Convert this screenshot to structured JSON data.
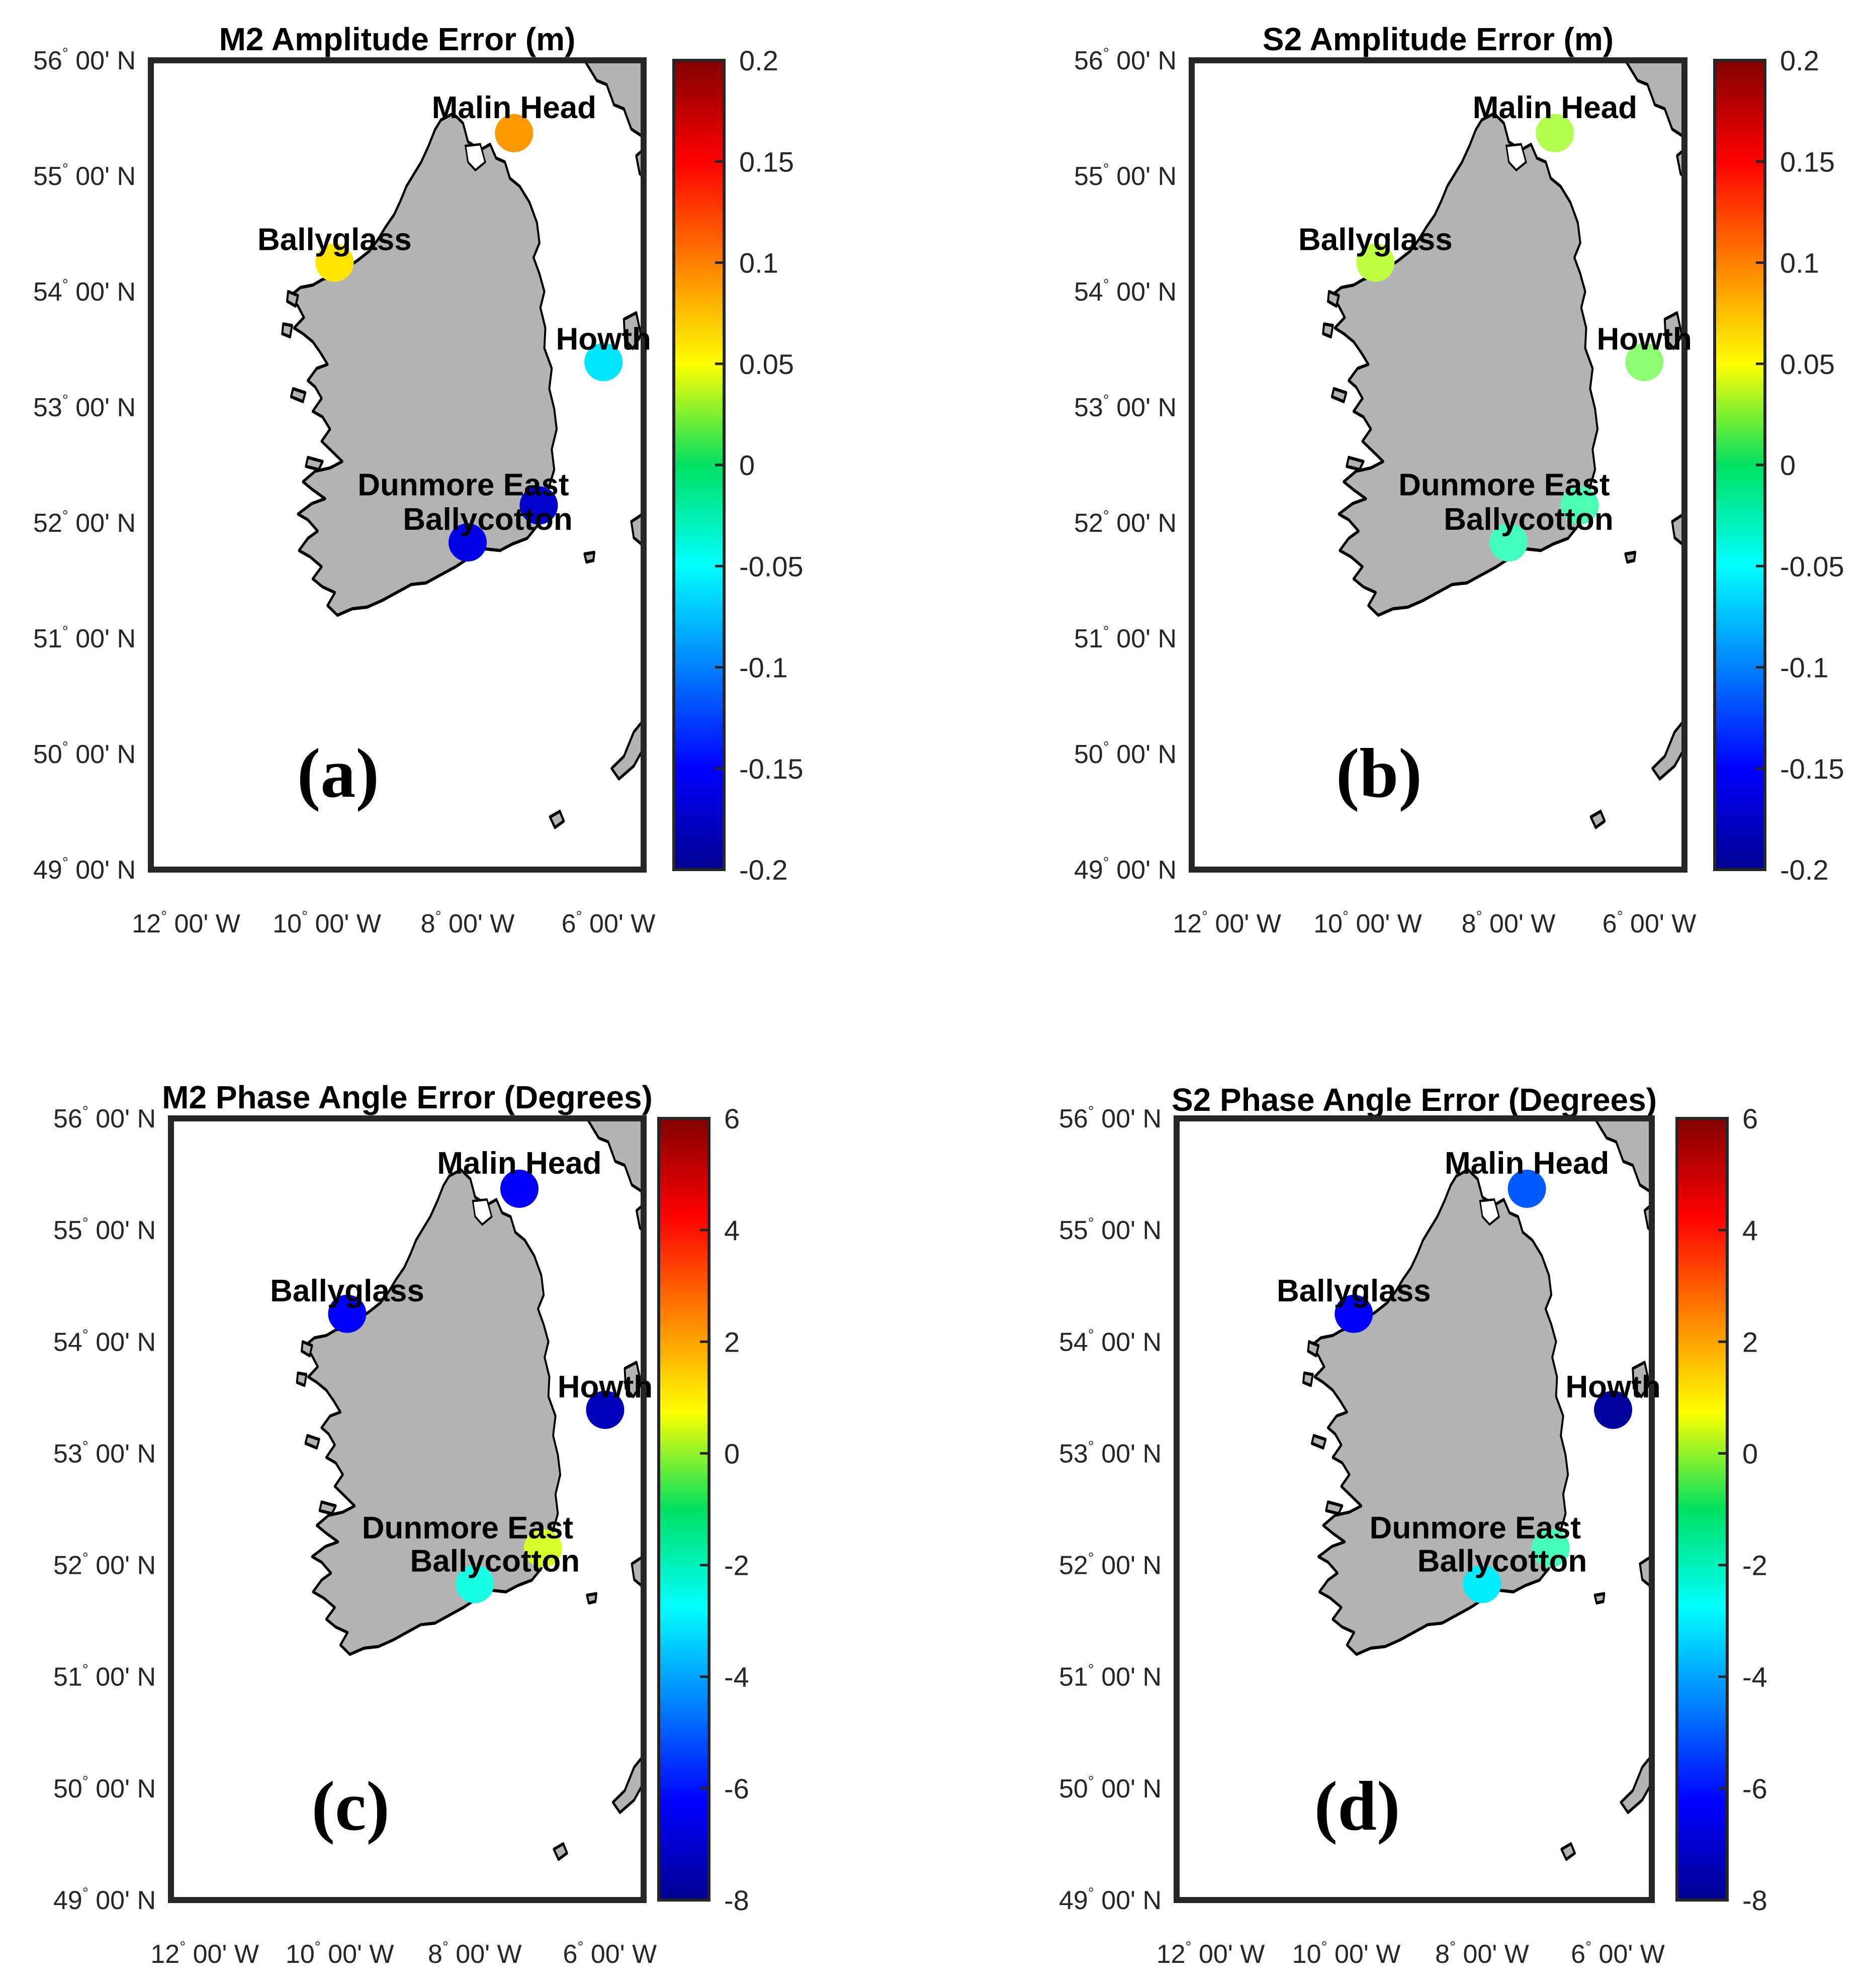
{
  "panels": [
    {
      "id": "a",
      "title": "M2 Amplitude Error (m)",
      "letter": "(a)",
      "colorbar": {
        "min": -0.2,
        "max": 0.2,
        "ticks": [
          "0.2",
          "0.15",
          "0.1",
          "0.05",
          "0",
          "-0.05",
          "-0.1",
          "-0.15",
          "-0.2"
        ]
      },
      "stations": [
        {
          "name": "Malin Head",
          "lon": -7.34,
          "lat": 55.37,
          "value": 0.09
        },
        {
          "name": "Ballyglass",
          "lon": -9.89,
          "lat": 54.25,
          "value": 0.06
        },
        {
          "name": "Howth",
          "lon": -6.07,
          "lat": 53.39,
          "value": -0.06
        },
        {
          "name": "Dunmore East",
          "lon": -6.99,
          "lat": 52.15,
          "value": -0.17
        },
        {
          "name": "Ballycotton",
          "lon": -8.0,
          "lat": 51.83,
          "value": -0.16
        }
      ]
    },
    {
      "id": "b",
      "title": "S2 Amplitude Error (m)",
      "letter": "(b)",
      "colorbar": {
        "min": -0.2,
        "max": 0.2,
        "ticks": [
          "0.2",
          "0.15",
          "0.1",
          "0.05",
          "0",
          "-0.05",
          "-0.1",
          "-0.15",
          "-0.2"
        ]
      },
      "stations": [
        {
          "name": "Malin Head",
          "lon": -7.34,
          "lat": 55.37,
          "value": 0.02
        },
        {
          "name": "Ballyglass",
          "lon": -9.89,
          "lat": 54.25,
          "value": 0.025
        },
        {
          "name": "Howth",
          "lon": -6.07,
          "lat": 53.39,
          "value": 0.005
        },
        {
          "name": "Dunmore East",
          "lon": -6.99,
          "lat": 52.15,
          "value": -0.02
        },
        {
          "name": "Ballycotton",
          "lon": -8.0,
          "lat": 51.83,
          "value": -0.025
        }
      ]
    },
    {
      "id": "c",
      "title": "M2 Phase Angle Error (Degrees)",
      "letter": "(c)",
      "colorbar": {
        "min": -8,
        "max": 6,
        "ticks": [
          "6",
          "4",
          "2",
          "0",
          "-2",
          "-4",
          "-6",
          "-8"
        ]
      },
      "stations": [
        {
          "name": "Malin Head",
          "lon": -7.34,
          "lat": 55.37,
          "value": -6.3
        },
        {
          "name": "Ballyglass",
          "lon": -9.89,
          "lat": 54.25,
          "value": -6.3
        },
        {
          "name": "Howth",
          "lon": -6.07,
          "lat": 53.39,
          "value": -7.2
        },
        {
          "name": "Dunmore East",
          "lon": -6.99,
          "lat": 52.15,
          "value": 0.2
        },
        {
          "name": "Ballycotton",
          "lon": -8.0,
          "lat": 51.83,
          "value": -2.4
        }
      ]
    },
    {
      "id": "d",
      "title": "S2 Phase Angle Error (Degrees)",
      "letter": "(d)",
      "colorbar": {
        "min": -8,
        "max": 6,
        "ticks": [
          "6",
          "4",
          "2",
          "0",
          "-2",
          "-4",
          "-6",
          "-8"
        ]
      },
      "stations": [
        {
          "name": "Malin Head",
          "lon": -7.34,
          "lat": 55.37,
          "value": -5.0
        },
        {
          "name": "Ballyglass",
          "lon": -9.89,
          "lat": 54.25,
          "value": -6.3
        },
        {
          "name": "Howth",
          "lon": -6.07,
          "lat": 53.39,
          "value": -7.6
        },
        {
          "name": "Dunmore East",
          "lon": -6.99,
          "lat": 52.15,
          "value": -1.8
        },
        {
          "name": "Ballycotton",
          "lon": -8.0,
          "lat": 51.83,
          "value": -3.0
        }
      ]
    }
  ],
  "axes": {
    "lon_range": [
      -12.5,
      -5.5
    ],
    "lat_range": [
      49,
      56
    ],
    "lat_ticks": [
      {
        "value": 56,
        "deg": "56",
        "min": " 00' N"
      },
      {
        "value": 55,
        "deg": "55",
        "min": " 00' N"
      },
      {
        "value": 54,
        "deg": "54",
        "min": " 00' N"
      },
      {
        "value": 53,
        "deg": "53",
        "min": " 00' N"
      },
      {
        "value": 52,
        "deg": "52",
        "min": " 00' N"
      },
      {
        "value": 51,
        "deg": "51",
        "min": " 00' N"
      },
      {
        "value": 50,
        "deg": "50",
        "min": " 00' N"
      },
      {
        "value": 49,
        "deg": "49",
        "min": " 00' N"
      }
    ],
    "lon_ticks": [
      {
        "value": -12,
        "deg": "12",
        "min": " 00' W"
      },
      {
        "value": -10,
        "deg": "10",
        "min": " 00' W"
      },
      {
        "value": -8,
        "deg": "8",
        "min": " 00' W"
      },
      {
        "value": -6,
        "deg": "6",
        "min": " 00' W"
      }
    ],
    "degree_symbol": "°"
  },
  "colormap": "jet",
  "colors": {
    "land": "#b3b3b3",
    "coast": "#000000",
    "frame": "#262626"
  }
}
